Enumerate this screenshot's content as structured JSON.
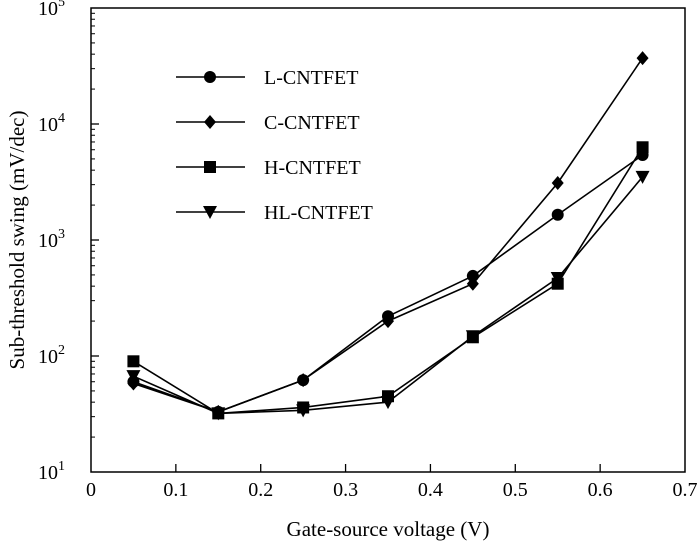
{
  "chart_data": {
    "type": "line",
    "title": "",
    "xlabel": "Gate-source voltage (V)",
    "ylabel": "Sub-threshold swing (mV/dec)",
    "xlim": [
      0,
      0.7
    ],
    "ylim": [
      10,
      100000
    ],
    "yscale": "log",
    "grid": false,
    "legend_position": "top-left",
    "x_ticks": [
      0,
      0.1,
      0.2,
      0.3,
      0.4,
      0.5,
      0.6,
      0.7
    ],
    "x_tick_labels": [
      "0",
      "0.1",
      "0.2",
      "0.3",
      "0.4",
      "0.5",
      "0.6",
      "0.7"
    ],
    "y_ticks": [
      10,
      100,
      1000,
      10000,
      100000
    ],
    "y_tick_bases": [
      "10",
      "10",
      "10",
      "10",
      "10"
    ],
    "y_tick_exponents": [
      "1",
      "2",
      "3",
      "4",
      "5"
    ],
    "x": [
      0.05,
      0.15,
      0.25,
      0.35,
      0.45,
      0.55,
      0.65
    ],
    "series": [
      {
        "name": "L-CNTFET",
        "marker": "circle",
        "values": [
          60,
          33,
          62,
          220,
          490,
          1650,
          5400
        ]
      },
      {
        "name": "C-CNTFET",
        "marker": "diamond",
        "values": [
          58,
          33,
          62,
          200,
          420,
          3100,
          37000
        ]
      },
      {
        "name": "H-CNTFET",
        "marker": "square",
        "values": [
          90,
          32,
          36,
          45,
          145,
          420,
          6300
        ]
      },
      {
        "name": "HL-CNTFET",
        "marker": "triangle-down",
        "values": [
          67,
          32,
          34,
          40,
          148,
          470,
          3500
        ]
      }
    ]
  }
}
